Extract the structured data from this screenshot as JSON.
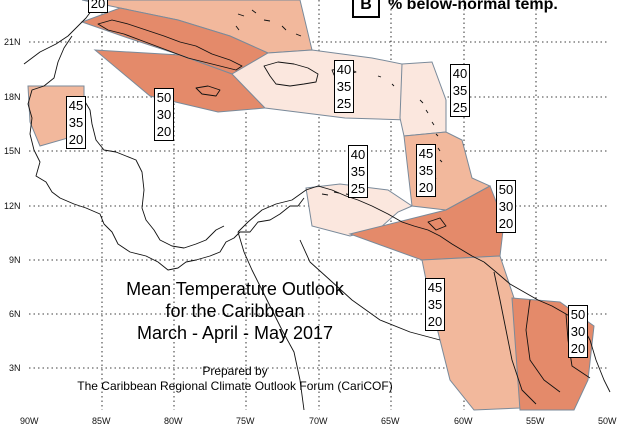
{
  "title": {
    "line1": "Mean Temperature Outlook",
    "line2": "for the Caribbean",
    "line3": "March - April - May 2017"
  },
  "credit": {
    "line1": "Prepared by",
    "line2": "The Caribbean Regional Climate Outlook Forum (CariCOF)"
  },
  "legend": {
    "key": "B",
    "text": "% below-normal temp."
  },
  "axes": {
    "lat_labels": [
      "21N",
      "18N",
      "15N",
      "12N",
      "9N",
      "6N",
      "3N"
    ],
    "lon_labels": [
      "90W",
      "85W",
      "80W",
      "75W",
      "70W",
      "65W",
      "60W",
      "55W",
      "50W"
    ]
  },
  "colors": {
    "strong": "#e48a6a",
    "moderate": "#f2b89c",
    "light": "#fbe7de",
    "boundary": "#7a8a9a"
  },
  "regions": [
    {
      "name": "bahamas-top",
      "values": [
        "20"
      ],
      "tier": "moderate"
    },
    {
      "name": "cuba",
      "values": [],
      "tier": "strong"
    },
    {
      "name": "hispaniola-puertorico",
      "values": [
        "40",
        "35",
        "25"
      ],
      "tier": "light"
    },
    {
      "name": "jamaica",
      "values": [
        "50",
        "30",
        "20"
      ],
      "tier": "strong"
    },
    {
      "name": "belize",
      "values": [
        "45",
        "35",
        "20"
      ],
      "tier": "moderate"
    },
    {
      "name": "leeward-islands",
      "values": [
        "40",
        "35",
        "25"
      ],
      "tier": "light"
    },
    {
      "name": "windward-islands",
      "values": [
        "45",
        "35",
        "20"
      ],
      "tier": "moderate"
    },
    {
      "name": "trinidad-tobago",
      "values": [
        "50",
        "30",
        "20"
      ],
      "tier": "strong"
    },
    {
      "name": "abc-islands",
      "values": [
        "40",
        "35",
        "25"
      ],
      "tier": "light"
    },
    {
      "name": "guyana",
      "values": [
        "45",
        "35",
        "20"
      ],
      "tier": "moderate"
    },
    {
      "name": "suriname-guiana",
      "values": [
        "50",
        "30",
        "20"
      ],
      "tier": "strong"
    }
  ]
}
